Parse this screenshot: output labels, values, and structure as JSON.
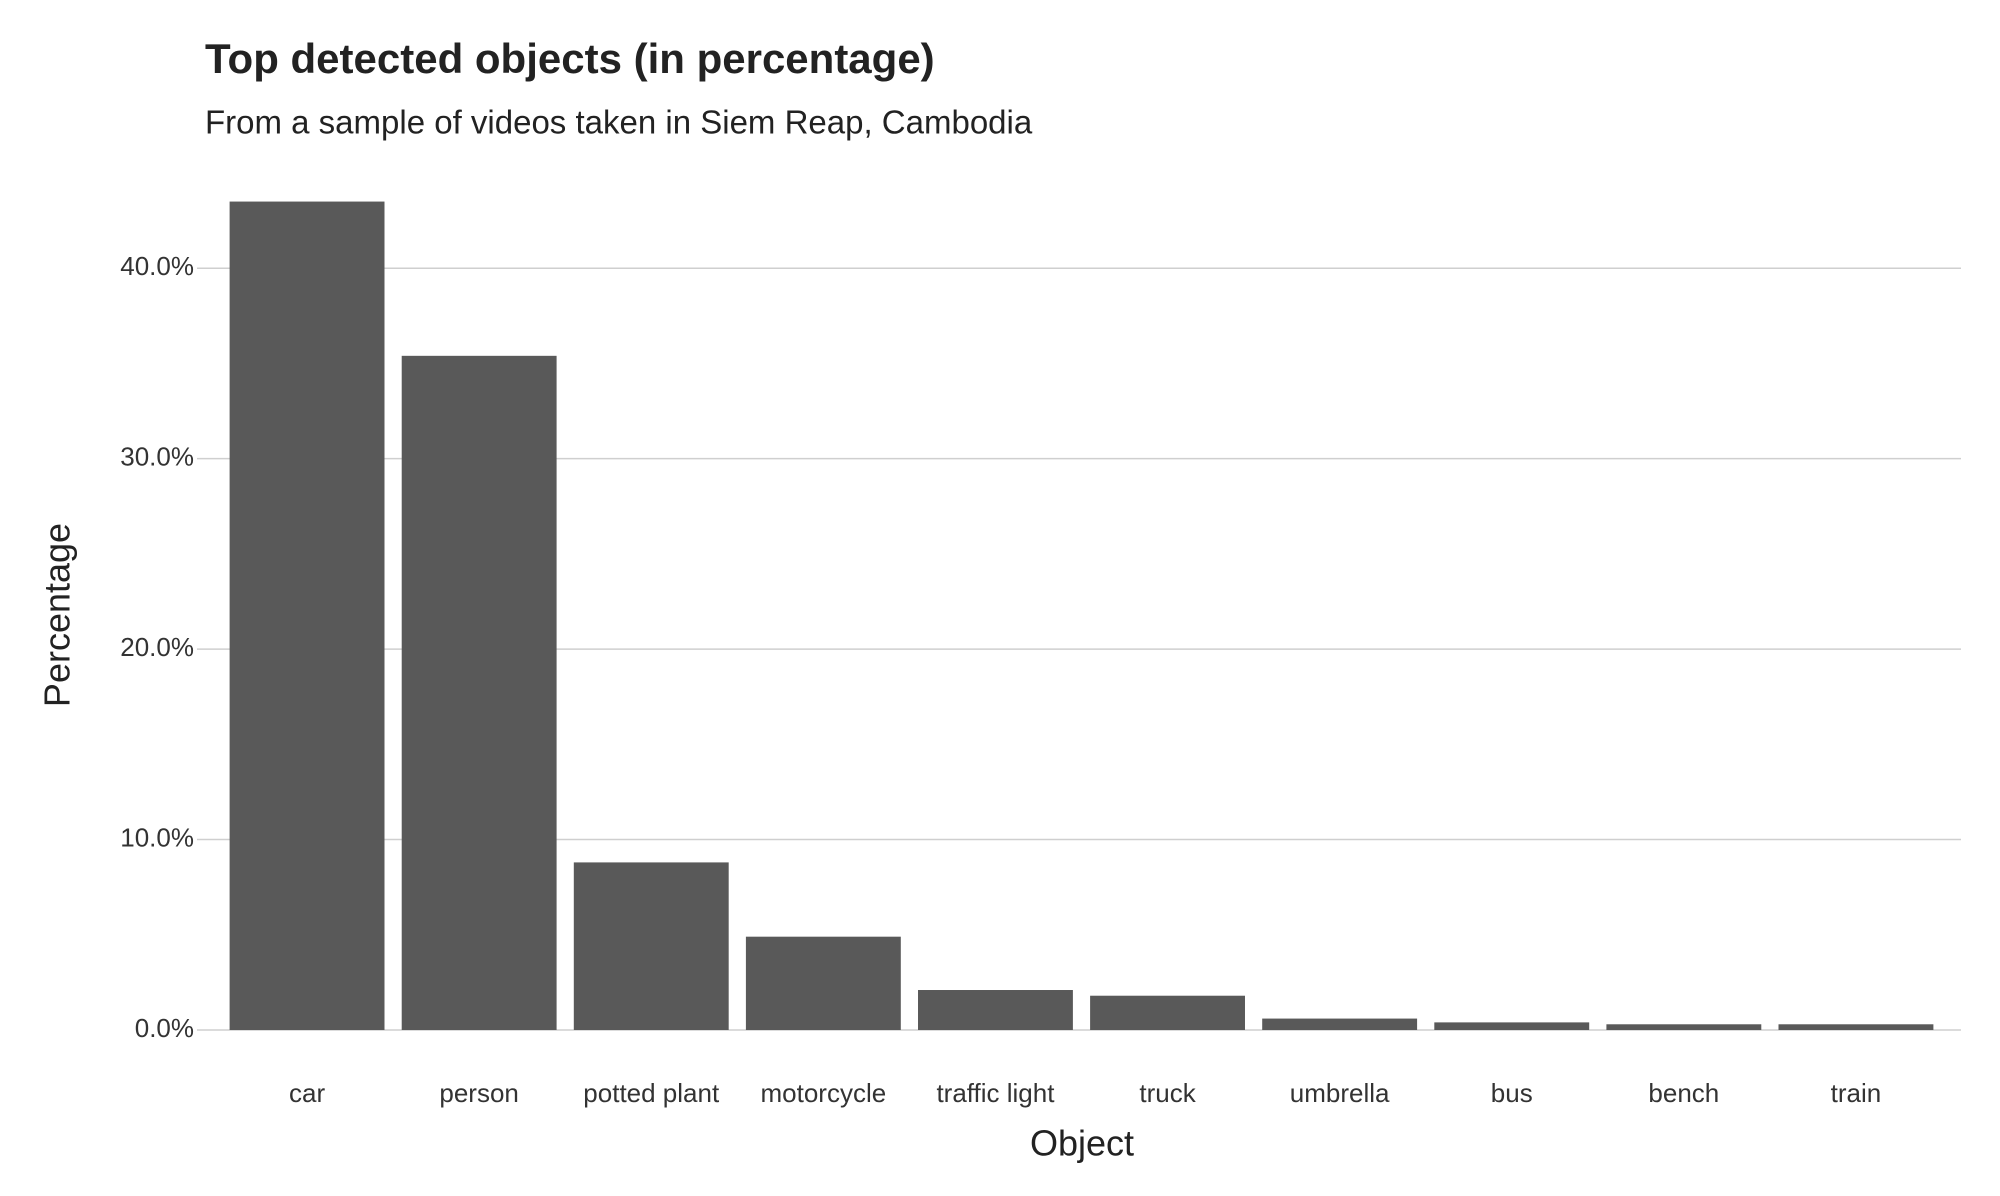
{
  "chart_data": {
    "type": "bar",
    "title": "Top detected objects (in percentage)",
    "subtitle": "From a sample of videos taken in Siem Reap, Cambodia",
    "x_label": "Object",
    "y_label": "Percentage",
    "categories": [
      "car",
      "person",
      "potted plant",
      "motorcycle",
      "traffic light",
      "truck",
      "umbrella",
      "bus",
      "bench",
      "train"
    ],
    "values": [
      43.5,
      35.4,
      8.8,
      4.9,
      2.1,
      1.8,
      0.6,
      0.4,
      0.3,
      0.3
    ],
    "color": "#595959",
    "ylim": [
      0,
      45
    ],
    "yticks": [
      {
        "value": 0,
        "label": "0.0%"
      },
      {
        "value": 10,
        "label": "10.0%"
      },
      {
        "value": 20,
        "label": "20.0%"
      },
      {
        "value": 30,
        "label": "30.0%"
      },
      {
        "value": 40,
        "label": "40.0%"
      }
    ],
    "grid": true
  }
}
